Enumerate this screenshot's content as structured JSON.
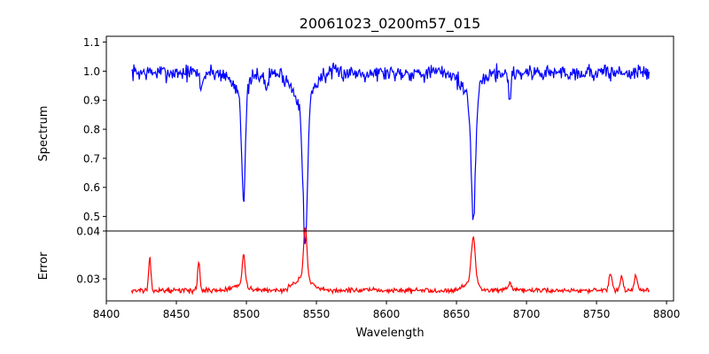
{
  "chart_data": [
    {
      "type": "line",
      "title": "20061023_0200m57_015",
      "xlabel": "",
      "ylabel": "Spectrum",
      "xlim": [
        8400,
        8805
      ],
      "ylim": [
        0.45,
        1.12
      ],
      "yticks": [
        0.5,
        0.6,
        0.7,
        0.8,
        0.9,
        1.0,
        1.1
      ],
      "ytick_labels": [
        "0.5",
        "0.6",
        "0.7",
        "0.8",
        "0.9",
        "1.0",
        "1.1"
      ],
      "series": [
        {
          "color": "#0000ff",
          "x_start": 8418,
          "x_end": 8788,
          "baseline": 0.995,
          "noise": 0.022,
          "seed": 7,
          "features": [
            {
              "center": 8498,
              "depth": 0.38,
              "width": 1.3
            },
            {
              "center": 8496,
              "depth": 0.06,
              "width": 6
            },
            {
              "center": 8542,
              "depth": 0.5,
              "width": 1.6
            },
            {
              "center": 8540,
              "depth": 0.1,
              "width": 7
            },
            {
              "center": 8662,
              "depth": 0.45,
              "width": 1.5
            },
            {
              "center": 8660,
              "depth": 0.08,
              "width": 6
            },
            {
              "center": 8688,
              "depth": 0.1,
              "width": 0.8
            },
            {
              "center": 8468,
              "depth": 0.05,
              "width": 1.2
            },
            {
              "center": 8514,
              "depth": 0.05,
              "width": 1.5
            },
            {
              "center": 8806,
              "depth": 0.0,
              "width": 1
            }
          ]
        }
      ]
    },
    {
      "type": "line",
      "title": "",
      "xlabel": "Wavelength",
      "ylabel": "Error",
      "xlim": [
        8400,
        8805
      ],
      "ylim": [
        0.0254,
        0.04
      ],
      "yticks": [
        0.03,
        0.04
      ],
      "ytick_labels": [
        "0.03",
        "0.04"
      ],
      "xticks": [
        8400,
        8450,
        8500,
        8550,
        8600,
        8650,
        8700,
        8750,
        8800
      ],
      "xtick_labels": [
        "8400",
        "8450",
        "8500",
        "8550",
        "8600",
        "8650",
        "8700",
        "8750",
        "8800"
      ],
      "series": [
        {
          "color": "#ff0000",
          "x_start": 8418,
          "x_end": 8788,
          "baseline": 0.0276,
          "noise": 0.0004,
          "seed": 13,
          "features": [
            {
              "center": 8431,
              "height": 0.0065,
              "width": 0.8
            },
            {
              "center": 8466,
              "height": 0.0062,
              "width": 0.8
            },
            {
              "center": 8498,
              "height": 0.0068,
              "width": 1.0
            },
            {
              "center": 8496,
              "height": 0.0012,
              "width": 5
            },
            {
              "center": 8542,
              "height": 0.0108,
              "width": 1.2
            },
            {
              "center": 8540,
              "height": 0.0025,
              "width": 6
            },
            {
              "center": 8662,
              "height": 0.0095,
              "width": 1.5
            },
            {
              "center": 8660,
              "height": 0.0015,
              "width": 5
            },
            {
              "center": 8760,
              "height": 0.0035,
              "width": 1.0
            },
            {
              "center": 8768,
              "height": 0.003,
              "width": 1.0
            },
            {
              "center": 8778,
              "height": 0.003,
              "width": 1.0
            },
            {
              "center": 8688,
              "height": 0.0015,
              "width": 1.0
            }
          ]
        }
      ]
    }
  ],
  "colors": {
    "spectrum": "#0000ff",
    "error": "#ff0000",
    "axis": "#000000"
  }
}
